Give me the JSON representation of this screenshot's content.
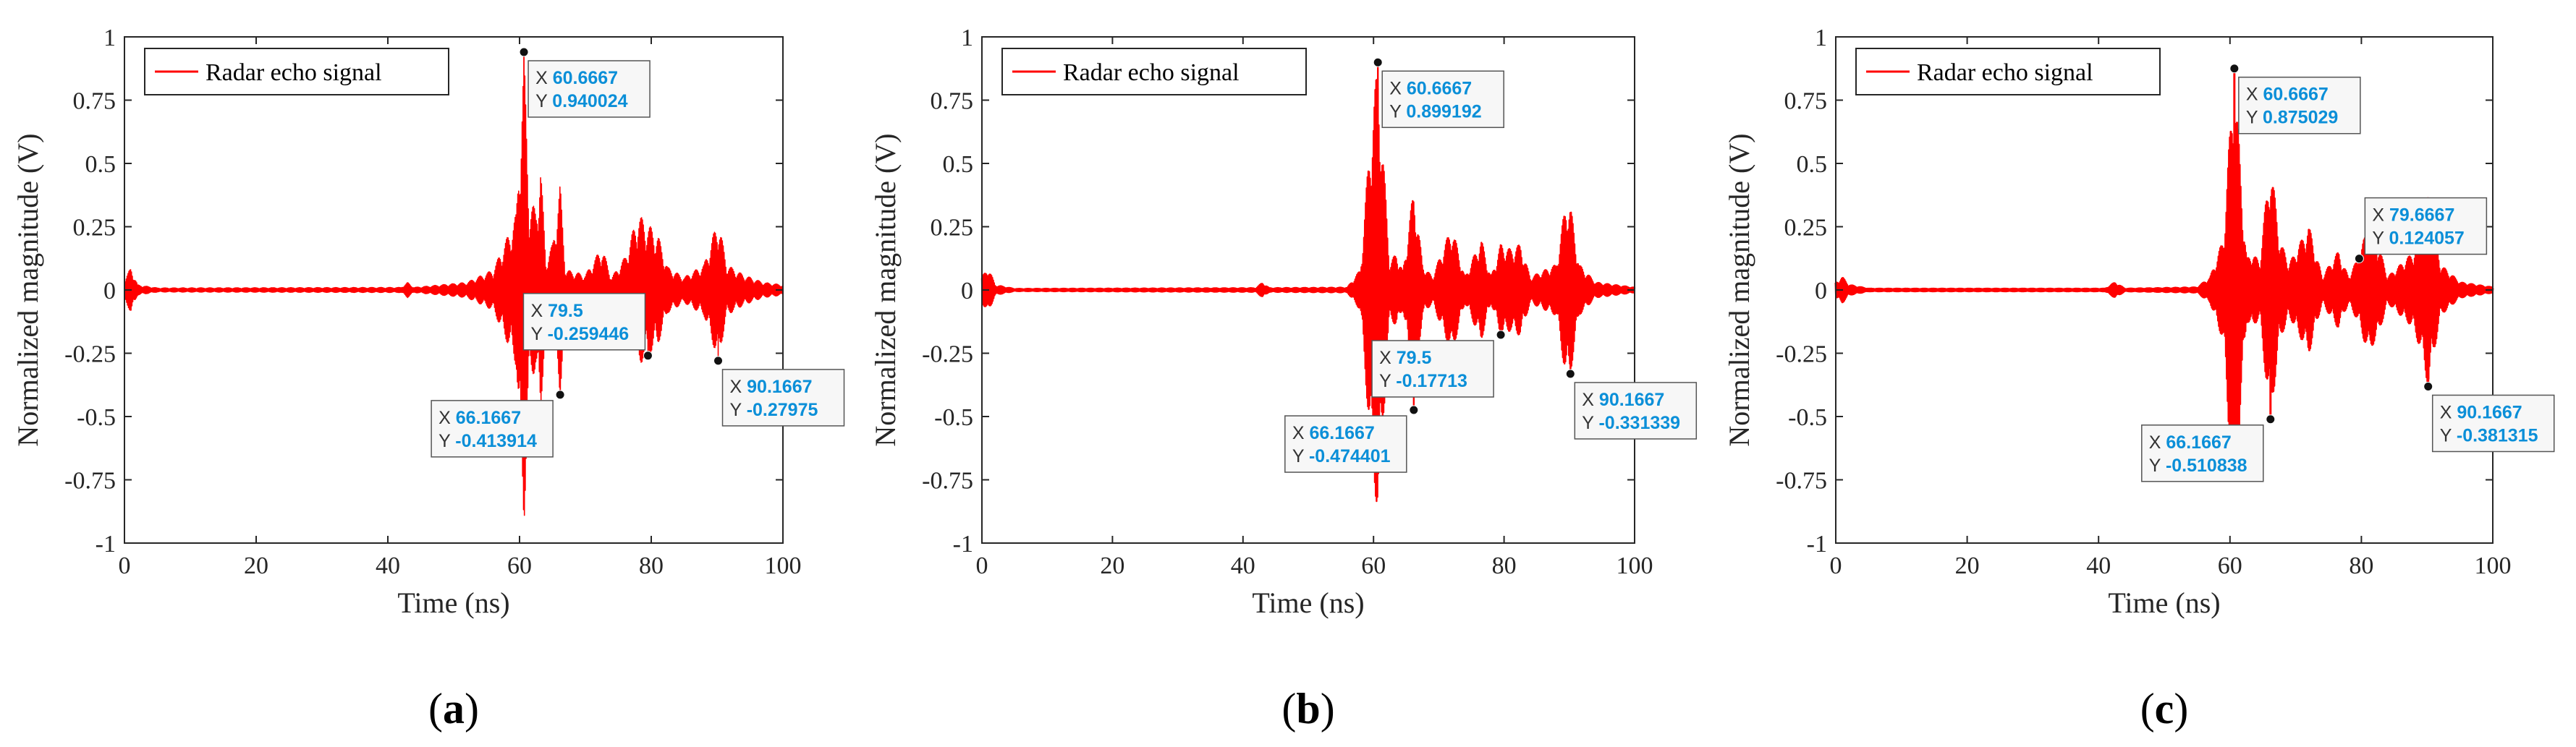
{
  "colors": {
    "signal": "#ff0000",
    "tip_value": "#0b8fd8",
    "axis": "#262626"
  },
  "chart_data": [
    {
      "type": "line",
      "panel_label": "a",
      "legend": "Radar echo signal",
      "xlabel": "Time (ns)",
      "ylabel": "Normalized magnitude (V)",
      "xlim": [
        0,
        100
      ],
      "ylim": [
        -1,
        1
      ],
      "xticks": [
        "0",
        "20",
        "40",
        "60",
        "80",
        "100"
      ],
      "yticks": [
        "1",
        "0.75",
        "0.5",
        "0.25",
        "0",
        "-0.25",
        "-0.5",
        "-0.75",
        "-1"
      ],
      "signal_style": "thin",
      "envelope": [
        {
          "t": 0,
          "a": 0.04
        },
        {
          "t": 1,
          "a": 0.09
        },
        {
          "t": 2,
          "a": 0.02
        },
        {
          "t": 5,
          "a": 0.008
        },
        {
          "t": 42,
          "a": 0.01
        },
        {
          "t": 43,
          "a": 0.03
        },
        {
          "t": 44,
          "a": 0.01
        },
        {
          "t": 52,
          "a": 0.03
        },
        {
          "t": 56,
          "a": 0.08
        },
        {
          "t": 58,
          "a": 0.2
        },
        {
          "t": 59.5,
          "a": 0.3
        },
        {
          "t": 60.6667,
          "a": 0.94
        },
        {
          "t": 61.5,
          "a": 0.35
        },
        {
          "t": 62.5,
          "a": 0.32
        },
        {
          "t": 63.2,
          "a": 0.5
        },
        {
          "t": 64,
          "a": 0.12
        },
        {
          "t": 65,
          "a": 0.18
        },
        {
          "t": 66.1667,
          "a": 0.42
        },
        {
          "t": 67,
          "a": 0.08
        },
        {
          "t": 70,
          "a": 0.06
        },
        {
          "t": 72.5,
          "a": 0.17
        },
        {
          "t": 74,
          "a": 0.05
        },
        {
          "t": 76,
          "a": 0.13
        },
        {
          "t": 78,
          "a": 0.3
        },
        {
          "t": 79.5,
          "a": 0.26
        },
        {
          "t": 81,
          "a": 0.22
        },
        {
          "t": 82.5,
          "a": 0.09
        },
        {
          "t": 85,
          "a": 0.05
        },
        {
          "t": 88,
          "a": 0.1
        },
        {
          "t": 90.1667,
          "a": 0.28
        },
        {
          "t": 91.5,
          "a": 0.1
        },
        {
          "t": 94,
          "a": 0.06
        },
        {
          "t": 97,
          "a": 0.03
        },
        {
          "t": 100,
          "a": 0.02
        }
      ],
      "datatips": [
        {
          "x": 60.6667,
          "y": 0.940024,
          "x_text": "60.6667",
          "y_text": "0.940024",
          "place": "right-below"
        },
        {
          "x": 66.1667,
          "y": -0.413914,
          "x_text": "66.1667",
          "y_text": "-0.413914",
          "place": "left-below"
        },
        {
          "x": 79.5,
          "y": -0.259446,
          "x_text": "79.5",
          "y_text": "-0.259446",
          "place": "left-above"
        },
        {
          "x": 90.1667,
          "y": -0.27975,
          "x_text": "90.1667",
          "y_text": "-0.27975",
          "place": "right-below"
        }
      ]
    },
    {
      "type": "line",
      "panel_label": "b",
      "legend": "Radar echo signal",
      "xlabel": "Time (ns)",
      "ylabel": "Normalized magnitude (V)",
      "xlim": [
        0,
        100
      ],
      "ylim": [
        -1,
        1
      ],
      "xticks": [
        "0",
        "20",
        "40",
        "60",
        "80",
        "100"
      ],
      "yticks": [
        "1",
        "0.75",
        "0.5",
        "0.25",
        "0",
        "-0.25",
        "-0.5",
        "-0.75",
        "-1"
      ],
      "signal_style": "medium",
      "envelope": [
        {
          "t": 0,
          "a": 0.05
        },
        {
          "t": 1,
          "a": 0.09
        },
        {
          "t": 2,
          "a": 0.02
        },
        {
          "t": 5,
          "a": 0.005
        },
        {
          "t": 42,
          "a": 0.008
        },
        {
          "t": 43,
          "a": 0.03
        },
        {
          "t": 44,
          "a": 0.008
        },
        {
          "t": 56,
          "a": 0.01
        },
        {
          "t": 58,
          "a": 0.08
        },
        {
          "t": 59.5,
          "a": 0.6
        },
        {
          "t": 60.6667,
          "a": 0.9
        },
        {
          "t": 61.3,
          "a": 0.6
        },
        {
          "t": 62.5,
          "a": 0.1
        },
        {
          "t": 63.5,
          "a": 0.15
        },
        {
          "t": 64.5,
          "a": 0.07
        },
        {
          "t": 66.1667,
          "a": 0.4
        },
        {
          "t": 67.5,
          "a": 0.1
        },
        {
          "t": 69,
          "a": 0.05
        },
        {
          "t": 72,
          "a": 0.25
        },
        {
          "t": 74,
          "a": 0.05
        },
        {
          "t": 76.5,
          "a": 0.2
        },
        {
          "t": 78,
          "a": 0.05
        },
        {
          "t": 79.5,
          "a": 0.18
        },
        {
          "t": 81,
          "a": 0.16
        },
        {
          "t": 82.5,
          "a": 0.18
        },
        {
          "t": 84,
          "a": 0.05
        },
        {
          "t": 88,
          "a": 0.1
        },
        {
          "t": 89.5,
          "a": 0.35
        },
        {
          "t": 90.1667,
          "a": 0.33
        },
        {
          "t": 91.5,
          "a": 0.1
        },
        {
          "t": 94,
          "a": 0.03
        },
        {
          "t": 100,
          "a": 0.01
        }
      ],
      "datatips": [
        {
          "x": 60.6667,
          "y": 0.899192,
          "x_text": "60.6667",
          "y_text": "0.899192",
          "place": "right-below"
        },
        {
          "x": 66.1667,
          "y": -0.474401,
          "x_text": "66.1667",
          "y_text": "-0.474401",
          "place": "left-below"
        },
        {
          "x": 79.5,
          "y": -0.17713,
          "x_text": "79.5",
          "y_text": "-0.17713",
          "place": "left-below"
        },
        {
          "x": 90.1667,
          "y": -0.331339,
          "x_text": "90.1667",
          "y_text": "-0.331339",
          "place": "right-below"
        }
      ]
    },
    {
      "type": "line",
      "panel_label": "c",
      "legend": "Radar echo signal",
      "xlabel": "Time (ns)",
      "ylabel": "Normalized magnitude (V)",
      "xlim": [
        0,
        100
      ],
      "ylim": [
        -1,
        1
      ],
      "xticks": [
        "0",
        "20",
        "40",
        "60",
        "80",
        "100"
      ],
      "yticks": [
        "1",
        "0.75",
        "0.5",
        "0.25",
        "0",
        "-0.25",
        "-0.5",
        "-0.75",
        "-1"
      ],
      "signal_style": "dense",
      "envelope": [
        {
          "t": 0,
          "a": 0.03
        },
        {
          "t": 1,
          "a": 0.05
        },
        {
          "t": 2,
          "a": 0.02
        },
        {
          "t": 5,
          "a": 0.005
        },
        {
          "t": 41,
          "a": 0.005
        },
        {
          "t": 42.5,
          "a": 0.03
        },
        {
          "t": 44,
          "a": 0.005
        },
        {
          "t": 55,
          "a": 0.01
        },
        {
          "t": 57,
          "a": 0.05
        },
        {
          "t": 59,
          "a": 0.2
        },
        {
          "t": 60.6667,
          "a": 0.88
        },
        {
          "t": 61.5,
          "a": 0.5
        },
        {
          "t": 62.5,
          "a": 0.12
        },
        {
          "t": 63.5,
          "a": 0.15
        },
        {
          "t": 64.5,
          "a": 0.1
        },
        {
          "t": 66.1667,
          "a": 0.51
        },
        {
          "t": 67.5,
          "a": 0.2
        },
        {
          "t": 69,
          "a": 0.1
        },
        {
          "t": 72,
          "a": 0.25
        },
        {
          "t": 74,
          "a": 0.05
        },
        {
          "t": 76.5,
          "a": 0.15
        },
        {
          "t": 78,
          "a": 0.05
        },
        {
          "t": 79.6667,
          "a": 0.13
        },
        {
          "t": 81,
          "a": 0.25
        },
        {
          "t": 82.5,
          "a": 0.18
        },
        {
          "t": 84,
          "a": 0.05
        },
        {
          "t": 88,
          "a": 0.15
        },
        {
          "t": 89.5,
          "a": 0.28
        },
        {
          "t": 90.1667,
          "a": 0.38
        },
        {
          "t": 92,
          "a": 0.1
        },
        {
          "t": 95,
          "a": 0.03
        },
        {
          "t": 100,
          "a": 0.01
        }
      ],
      "datatips": [
        {
          "x": 60.6667,
          "y": 0.875029,
          "x_text": "60.6667",
          "y_text": "0.875029",
          "place": "right-below"
        },
        {
          "x": 66.1667,
          "y": -0.510838,
          "x_text": "66.1667",
          "y_text": "-0.510838",
          "place": "left-below"
        },
        {
          "x": 79.6667,
          "y": 0.124057,
          "x_text": "79.6667",
          "y_text": "0.124057",
          "place": "right-above"
        },
        {
          "x": 90.1667,
          "y": -0.381315,
          "x_text": "90.1667",
          "y_text": "-0.381315",
          "place": "right-below"
        }
      ]
    }
  ]
}
